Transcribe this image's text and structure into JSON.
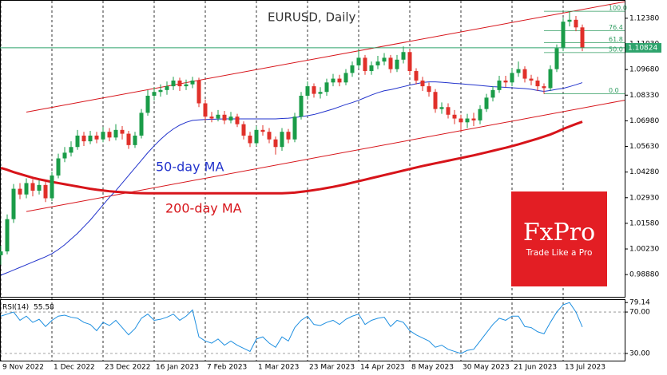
{
  "chart_data": {
    "type": "candlestick",
    "title": "EURUSD, Daily",
    "categories": [
      "9 Nov 2022",
      null,
      null,
      null,
      null,
      null,
      null,
      null,
      "1 Dec 2022",
      null,
      null,
      null,
      null,
      null,
      null,
      null,
      "23 Dec 2022",
      null,
      null,
      null,
      null,
      null,
      null,
      null,
      "16 Jan 2023",
      null,
      null,
      null,
      null,
      null,
      null,
      null,
      "7 Feb 2023",
      null,
      null,
      null,
      null,
      null,
      null,
      null,
      "1 Mar 2023",
      null,
      null,
      null,
      null,
      null,
      null,
      null,
      "23 Mar 2023",
      null,
      null,
      null,
      null,
      null,
      null,
      null,
      "14 Apr 2023",
      null,
      null,
      null,
      null,
      null,
      null,
      null,
      "8 May 2023",
      null,
      null,
      null,
      null,
      null,
      null,
      null,
      "30 May 2023",
      null,
      null,
      null,
      null,
      null,
      null,
      null,
      "21 Jun 2023",
      null,
      null,
      null,
      null,
      null,
      null,
      null,
      "13 Jul 2023",
      null,
      null,
      null
    ],
    "open": [
      0.999,
      1.001,
      1.018,
      1.034,
      1.031,
      1.037,
      1.033,
      1.036,
      1.029,
      1.041,
      1.05,
      1.053,
      1.056,
      1.062,
      1.059,
      1.062,
      1.06,
      1.064,
      1.061,
      1.065,
      1.063,
      1.057,
      1.062,
      1.074,
      1.083,
      1.085,
      1.086,
      1.088,
      1.091,
      1.088,
      1.089,
      1.091,
      1.079,
      1.072,
      1.071,
      1.073,
      1.07,
      1.072,
      1.068,
      1.062,
      1.058,
      1.065,
      1.064,
      1.06,
      1.056,
      1.064,
      1.06,
      1.072,
      1.083,
      1.088,
      1.084,
      1.085,
      1.09,
      1.092,
      1.09,
      1.095,
      1.099,
      1.103,
      1.096,
      1.099,
      1.101,
      1.103,
      1.097,
      1.102,
      1.106,
      1.096,
      1.091,
      1.088,
      1.085,
      1.076,
      1.077,
      1.073,
      1.071,
      1.069,
      1.071,
      1.07,
      1.076,
      1.082,
      1.086,
      1.091,
      1.09,
      1.095,
      1.097,
      1.092,
      1.091,
      1.088,
      1.087,
      1.097,
      1.108,
      1.122,
      1.123,
      1.119
    ],
    "high": [
      1.004,
      1.0205,
      1.0365,
      1.037,
      1.0395,
      1.039,
      1.0385,
      1.038,
      1.043,
      1.0525,
      1.056,
      1.059,
      1.065,
      1.064,
      1.0645,
      1.064,
      1.0665,
      1.066,
      1.068,
      1.067,
      1.0645,
      1.064,
      1.076,
      1.086,
      1.0875,
      1.089,
      1.0905,
      1.093,
      1.0925,
      1.0915,
      1.093,
      1.0925,
      1.081,
      1.0745,
      1.0755,
      1.075,
      1.0745,
      1.0735,
      1.0695,
      1.064,
      1.067,
      1.0675,
      1.066,
      1.0615,
      1.066,
      1.0655,
      1.074,
      1.085,
      1.0905,
      1.0895,
      1.0875,
      1.092,
      1.0945,
      1.094,
      1.097,
      1.101,
      1.1075,
      1.1045,
      1.101,
      1.104,
      1.1055,
      1.1045,
      1.1045,
      1.109,
      1.1075,
      1.0975,
      1.093,
      1.09,
      1.0865,
      1.0795,
      1.079,
      1.0755,
      1.073,
      1.0735,
      1.074,
      1.078,
      1.084,
      1.088,
      1.0935,
      1.0935,
      1.0975,
      1.101,
      1.0985,
      1.094,
      1.093,
      1.0895,
      1.099,
      1.11,
      1.124,
      1.1275,
      1.125,
      1.1205
    ],
    "low": [
      0.994,
      0.9995,
      1.016,
      1.0285,
      1.029,
      1.03,
      1.031,
      1.027,
      1.0275,
      1.0395,
      1.048,
      1.051,
      1.0545,
      1.0565,
      1.0575,
      1.058,
      1.0585,
      1.059,
      1.0595,
      1.06,
      1.055,
      1.0555,
      1.0605,
      1.0725,
      1.0805,
      1.0825,
      1.0835,
      1.086,
      1.0855,
      1.086,
      1.087,
      1.077,
      1.07,
      1.069,
      1.0695,
      1.068,
      1.0685,
      1.0665,
      1.06,
      1.056,
      1.0565,
      1.062,
      1.058,
      1.052,
      1.054,
      1.058,
      1.0585,
      1.0705,
      1.081,
      1.082,
      1.0815,
      1.083,
      1.088,
      1.088,
      1.0885,
      1.093,
      1.0975,
      1.094,
      1.094,
      1.097,
      1.099,
      1.095,
      1.0955,
      1.1,
      1.094,
      1.089,
      1.0855,
      1.0825,
      1.074,
      1.0735,
      1.071,
      1.068,
      1.064,
      1.066,
      1.067,
      1.068,
      1.0745,
      1.08,
      1.0845,
      1.0875,
      1.088,
      1.093,
      1.09,
      1.0885,
      1.0855,
      1.084,
      1.0855,
      1.0955,
      1.1065,
      1.1195,
      1.117,
      1.1065
    ],
    "close": [
      1.001,
      1.018,
      1.034,
      1.031,
      1.037,
      1.033,
      1.036,
      1.029,
      1.041,
      1.05,
      1.053,
      1.056,
      1.062,
      1.059,
      1.062,
      1.06,
      1.064,
      1.061,
      1.065,
      1.063,
      1.057,
      1.062,
      1.074,
      1.083,
      1.085,
      1.086,
      1.088,
      1.091,
      1.088,
      1.089,
      1.091,
      1.079,
      1.072,
      1.071,
      1.073,
      1.07,
      1.072,
      1.068,
      1.062,
      1.058,
      1.065,
      1.064,
      1.06,
      1.056,
      1.064,
      1.06,
      1.072,
      1.083,
      1.088,
      1.084,
      1.085,
      1.09,
      1.092,
      1.09,
      1.095,
      1.099,
      1.103,
      1.096,
      1.099,
      1.101,
      1.103,
      1.097,
      1.102,
      1.106,
      1.096,
      1.091,
      1.088,
      1.085,
      1.076,
      1.077,
      1.073,
      1.071,
      1.069,
      1.071,
      1.07,
      1.076,
      1.082,
      1.086,
      1.091,
      1.09,
      1.095,
      1.097,
      1.092,
      1.091,
      1.088,
      1.087,
      1.097,
      1.108,
      1.122,
      1.123,
      1.119,
      1.1082
    ],
    "up_color": "#1a9c48",
    "down_color": "#e0302a",
    "ylim": [
      0.9771,
      1.133
    ],
    "yticks": [
      {
        "value": 1.1238,
        "label": "1.12380"
      },
      {
        "value": 1.1103,
        "label": "1.11030"
      },
      {
        "value": 1.0968,
        "label": "1.09680"
      },
      {
        "value": 1.0833,
        "label": "1.08330"
      },
      {
        "value": 1.0698,
        "label": "1.06980"
      },
      {
        "value": 1.0563,
        "label": "1.05630"
      },
      {
        "value": 1.0428,
        "label": "1.04280"
      },
      {
        "value": 1.0293,
        "label": "1.02930"
      },
      {
        "value": 1.0158,
        "label": "1.01580"
      },
      {
        "value": 1.0023,
        "label": "1.00230"
      },
      {
        "value": 0.9888,
        "label": "0.98880"
      }
    ],
    "current_price": 1.10824,
    "current_price_color": "#2ea36c",
    "series": [
      {
        "name": "50-day MA",
        "color": "#2233cc",
        "width": 1,
        "values": [
          0.9885,
          0.9898,
          0.9912,
          0.9926,
          0.994,
          0.9954,
          0.9968,
          0.9982,
          0.9998,
          1.002,
          1.0045,
          1.0075,
          1.0105,
          1.014,
          1.0175,
          1.0215,
          1.0255,
          1.0295,
          1.033,
          1.037,
          1.041,
          1.045,
          1.049,
          1.053,
          1.0566,
          1.06,
          1.063,
          1.0655,
          1.0675,
          1.069,
          1.07,
          1.0703,
          1.0705,
          1.0706,
          1.0707,
          1.0708,
          1.0708,
          1.0708,
          1.0708,
          1.0708,
          1.0708,
          1.0708,
          1.0708,
          1.0708,
          1.071,
          1.0712,
          1.0715,
          1.072,
          1.0725,
          1.0731,
          1.074,
          1.075,
          1.076,
          1.0772,
          1.0784,
          1.0794,
          1.0806,
          1.082,
          1.0834,
          1.0846,
          1.0856,
          1.0862,
          1.087,
          1.0878,
          1.0886,
          1.0893,
          1.09,
          1.0903,
          1.0903,
          1.0901,
          1.0898,
          1.0895,
          1.0893,
          1.089,
          1.0887,
          1.0884,
          1.0881,
          1.0878,
          1.0876,
          1.0874,
          1.0872,
          1.087,
          1.0868,
          1.0864,
          1.0858,
          1.0853,
          1.0858,
          1.0864,
          1.0869,
          1.0878,
          1.0888,
          1.0899
        ]
      },
      {
        "name": "200-day MA",
        "color": "#d7141a",
        "width": 3,
        "values": [
          1.045,
          1.044,
          1.0428,
          1.0418,
          1.0408,
          1.0398,
          1.039,
          1.0383,
          1.0376,
          1.037,
          1.0364,
          1.0358,
          1.0352,
          1.0346,
          1.034,
          1.0335,
          1.0331,
          1.0327,
          1.0324,
          1.0322,
          1.032,
          1.0318,
          1.0317,
          1.0316,
          1.0316,
          1.0316,
          1.0316,
          1.0316,
          1.0316,
          1.0316,
          1.0316,
          1.0316,
          1.0316,
          1.0316,
          1.0316,
          1.0316,
          1.0316,
          1.0316,
          1.0316,
          1.0316,
          1.0316,
          1.0316,
          1.0316,
          1.0316,
          1.0316,
          1.0318,
          1.032,
          1.0324,
          1.0328,
          1.0333,
          1.0338,
          1.0344,
          1.035,
          1.0357,
          1.0364,
          1.0372,
          1.038,
          1.0388,
          1.0396,
          1.0404,
          1.0412,
          1.042,
          1.0428,
          1.0436,
          1.0444,
          1.0452,
          1.046,
          1.0467,
          1.0474,
          1.0481,
          1.0488,
          1.0495,
          1.0502,
          1.0509,
          1.0516,
          1.0524,
          1.0532,
          1.054,
          1.0548,
          1.0556,
          1.0565,
          1.0574,
          1.0584,
          1.0594,
          1.0604,
          1.0615,
          1.0626,
          1.064,
          1.0655,
          1.0668,
          1.0681,
          1.0693
        ]
      }
    ],
    "channel": {
      "color": "#d7141a",
      "upper": [
        1.0744,
        1.1284
      ],
      "lower": [
        1.022,
        1.0765
      ]
    },
    "fibonacci": {
      "color": "#2e9b5f",
      "low": 1.084,
      "high": 1.1275,
      "levels": [
        {
          "value": 0,
          "label": "0.0"
        },
        {
          "value": 50,
          "label": "50.0"
        },
        61.8,
        76.4,
        {
          "value": 100,
          "label": "100.0"
        }
      ]
    },
    "rsi": {
      "label": "RSI(14)",
      "color": "#1e8fe0",
      "values": [
        66,
        68,
        70,
        62,
        66,
        60,
        63,
        56,
        62,
        66,
        67,
        65,
        64,
        60,
        58,
        52,
        60,
        57,
        62,
        55,
        48,
        54,
        64,
        68,
        62,
        63,
        65,
        68,
        62,
        66,
        72,
        46,
        42,
        40,
        44,
        38,
        42,
        38,
        35,
        32,
        44,
        46,
        40,
        36,
        46,
        42,
        55,
        62,
        66,
        58,
        57,
        60,
        62,
        58,
        63,
        66,
        68,
        58,
        62,
        64,
        65,
        56,
        62,
        60,
        52,
        48,
        45,
        42,
        36,
        38,
        34,
        32,
        30,
        33,
        34,
        42,
        50,
        58,
        64,
        62,
        66,
        66,
        56,
        55,
        51,
        49,
        60,
        70,
        77,
        79.14,
        70,
        55.58
      ],
      "ylim": [
        23.1,
        81.6
      ],
      "yticks": [
        79.14,
        {
          "value": 70,
          "label": "70.00"
        },
        {
          "value": 30,
          "label": "30.00"
        }
      ]
    },
    "logo": {
      "brand": "FxPro",
      "tagline": "Trade Like a Pro"
    }
  }
}
